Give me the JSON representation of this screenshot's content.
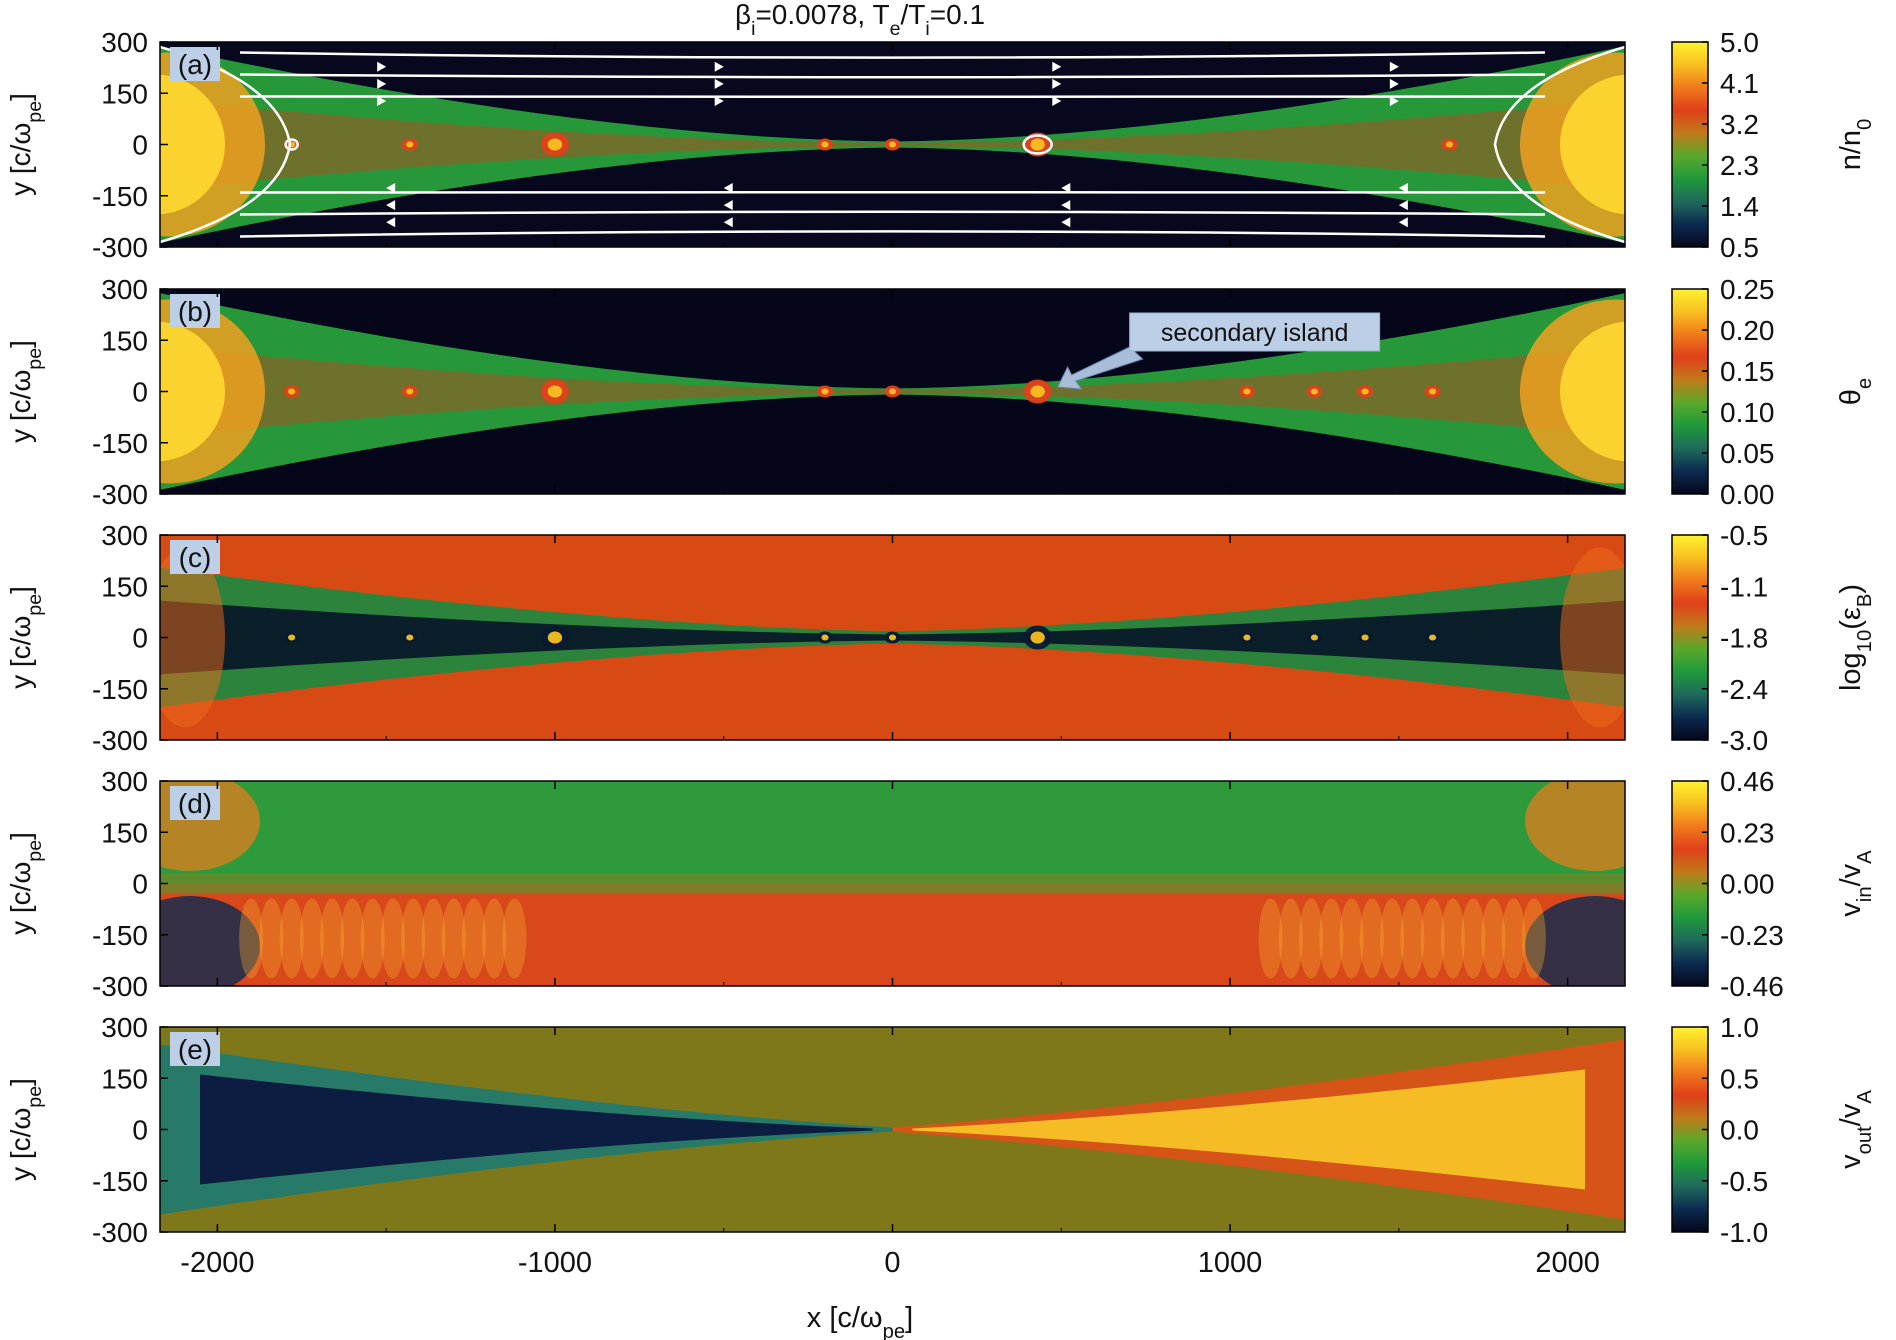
{
  "figure_title": "βi=0.0078, Te/Ti=0.1",
  "xlabel": "x [c/ωpe]",
  "x_ticks": [
    "-2000",
    "-1000",
    "0",
    "1000",
    "2000"
  ],
  "x_tick_values": [
    -2000,
    -1000,
    0,
    1000,
    2000
  ],
  "xlim": [
    -2170,
    2170
  ],
  "y_ticks": [
    "300",
    "150",
    "0",
    "-150",
    "-300"
  ],
  "y_tick_values": [
    300,
    150,
    0,
    -150,
    -300
  ],
  "ylim": [
    -300,
    300
  ],
  "colors": {
    "colormap": [
      "#05071a",
      "#0c2a50",
      "#1e6a5a",
      "#1f9a3c",
      "#5aa82a",
      "#c07a1a",
      "#e0401a",
      "#f07a1a",
      "#f8c020",
      "#fff230"
    ],
    "background_a": "#07081e",
    "background_b": "#06061a",
    "background_c": "#d84a14",
    "background_d_top": "#2e9a3c",
    "background_d_bottom": "#d8481a",
    "background_e": "#7e781a",
    "sheet_green": "#28a03c",
    "outflow_left": "#0c1840",
    "outflow_right": "#f8c226",
    "fieldlines": "#ffffff",
    "label_box": "#bccfe6",
    "annotation_arrow": "#a8bed8"
  },
  "chart_data": [
    {
      "type": "heatmap",
      "panel": "(a)",
      "quantity": "n/n0",
      "colorbar_label": "n/n0",
      "colorbar_range": [
        0.5,
        5.0
      ],
      "colorbar_ticks": [
        "5.0",
        "4.1",
        "3.2",
        "2.3",
        "1.4",
        "0.5"
      ],
      "overlay": "magnetic field lines with arrows",
      "islands_x": [
        -1780,
        -1430,
        -1000,
        -200,
        0,
        430,
        1650
      ]
    },
    {
      "type": "heatmap",
      "panel": "(b)",
      "quantity": "θe",
      "colorbar_label": "θe",
      "colorbar_range": [
        0.0,
        0.25
      ],
      "colorbar_ticks": [
        "0.25",
        "0.20",
        "0.15",
        "0.10",
        "0.05",
        "0.00"
      ],
      "annotation": "secondary island",
      "annotation_target_x": 430,
      "islands_x": [
        -1780,
        -1430,
        -1000,
        -200,
        0,
        430,
        1050,
        1250,
        1400,
        1600
      ]
    },
    {
      "type": "heatmap",
      "panel": "(c)",
      "quantity": "log10(εB)",
      "colorbar_label": "log10(εB)",
      "colorbar_range": [
        -3.0,
        -0.5
      ],
      "colorbar_ticks": [
        "-0.5",
        "-1.1",
        "-1.8",
        "-2.4",
        "-3.0"
      ],
      "islands_x": [
        -1780,
        -1430,
        -1000,
        -200,
        0,
        430,
        1050,
        1250,
        1400,
        1600
      ]
    },
    {
      "type": "heatmap",
      "panel": "(d)",
      "quantity": "vin/vA",
      "colorbar_label": "vin/vA",
      "colorbar_range": [
        -0.46,
        0.46
      ],
      "colorbar_ticks": [
        "0.46",
        "0.23",
        "0.00",
        "-0.23",
        "-0.46"
      ]
    },
    {
      "type": "heatmap",
      "panel": "(e)",
      "quantity": "vout/vA",
      "colorbar_label": "vout/vA",
      "colorbar_range": [
        -1.0,
        1.0
      ],
      "colorbar_ticks": [
        "1.0",
        "0.5",
        "0.0",
        "-0.5",
        "-1.0"
      ]
    }
  ]
}
